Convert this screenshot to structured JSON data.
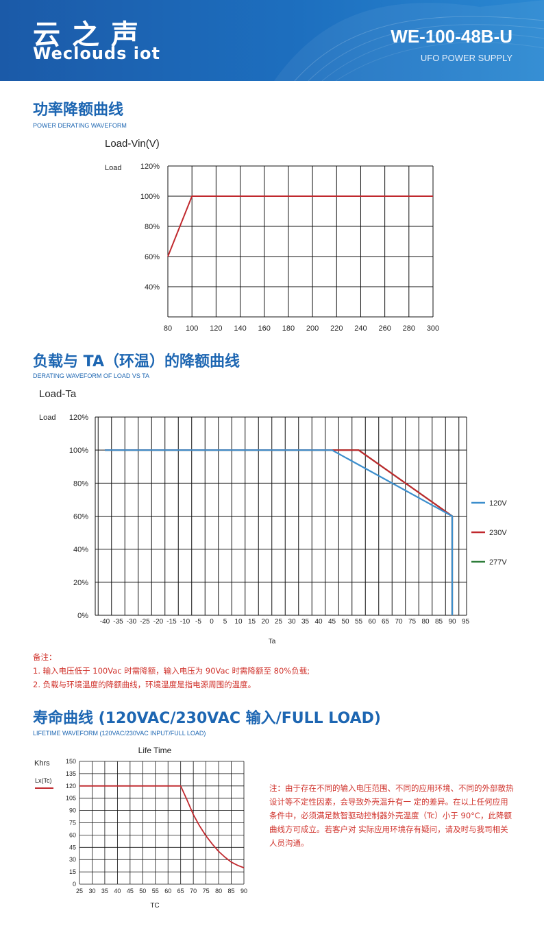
{
  "header": {
    "logo_cn": "云之声",
    "logo_en": "Weclouds iot",
    "model": "WE-100-48B-U",
    "subtitle": "UFO POWER SUPPLY"
  },
  "sections": {
    "s1_title": "功率降额曲线",
    "s1_sub": "POWER DERATING WAVEFORM",
    "s2_title": "负载与 TA（环温）的降额曲线",
    "s2_sub": "DERATING WAVEFORM OF LOAD VS TA",
    "s3_title": "寿命曲线 (120VAC/230VAC 输入/FULL LOAD)",
    "s3_sub": "LIFETIME WAVEFORM (120VAC/230VAC INPUT/FULL LOAD)"
  },
  "notes": {
    "heading": "备注：",
    "line1": "1. 输入电压低于 100Vac 时需降额，输入电压为 90Vac 时需降额至 80%负载;",
    "line2": "2. 负载与环境温度的降额曲线，环境温度是指电源周围的温度。"
  },
  "note2": "注：由于存在不同的输入电压范围、不同的应用环境、不同的外部散热设计等不定性因素，会导致外壳温升有一 定的差异。在以上任何应用条件中，必须满足数智驱动控制器外壳温度（Tc）小于 90°C，此降额曲线方可成立。若客户对 实际应用环境存有疑问，请及时与我司相关人员沟通。",
  "colors": {
    "blue": "#3c8ecc",
    "red": "#c0282d",
    "green": "#2e7d3a",
    "title_blue": "#1d66b2"
  },
  "chart_data": [
    {
      "type": "line",
      "title": "Load-Vin(V)",
      "ylabel": "Load",
      "xlabel": "",
      "x_ticks": [
        80,
        100,
        120,
        140,
        160,
        180,
        200,
        220,
        240,
        260,
        280,
        300
      ],
      "y_tick_labels": [
        "120%",
        "100%",
        "80%",
        "60%",
        "40%"
      ],
      "y_ticks": [
        120,
        100,
        80,
        60,
        40
      ],
      "xlim": [
        80,
        300
      ],
      "ylim": [
        20,
        120
      ],
      "grid": true,
      "series": [
        {
          "x": [
            80,
            100,
            300
          ],
          "y": [
            60,
            100,
            100
          ]
        }
      ]
    },
    {
      "type": "line",
      "title": "Load-Ta",
      "ylabel": "Load",
      "xlabel": "Ta",
      "x_ticks": [
        -40,
        -35,
        -30,
        -25,
        -20,
        -15,
        -10,
        -5,
        0,
        5,
        10,
        15,
        20,
        25,
        30,
        35,
        40,
        45,
        50,
        55,
        60,
        65,
        70,
        75,
        80,
        85,
        90,
        95
      ],
      "y_tick_labels": [
        "120%",
        "100%",
        "80%",
        "60%",
        "40%",
        "20%",
        "0%"
      ],
      "y_ticks": [
        120,
        100,
        80,
        60,
        40,
        20,
        0
      ],
      "xlim": [
        -42,
        97
      ],
      "ylim": [
        0,
        120
      ],
      "grid": true,
      "legend": "right",
      "series": [
        {
          "name": "277V",
          "x": [
            -40,
            55,
            90,
            90
          ],
          "y": [
            100,
            100,
            60,
            0
          ]
        },
        {
          "name": "230V",
          "x": [
            -40,
            55,
            90,
            90
          ],
          "y": [
            100,
            100,
            60,
            0
          ]
        },
        {
          "name": "120V",
          "x": [
            -40,
            45,
            90,
            90
          ],
          "y": [
            100,
            100,
            60,
            0
          ]
        }
      ]
    },
    {
      "type": "line",
      "title": "Life Time",
      "ylabel": "Khrs",
      "xlabel": "TC",
      "legend": "Lx(Tc)",
      "x_ticks": [
        25,
        30,
        35,
        40,
        45,
        50,
        55,
        60,
        65,
        70,
        75,
        80,
        85,
        90
      ],
      "y_ticks": [
        0,
        15,
        30,
        45,
        60,
        75,
        90,
        105,
        120,
        135,
        150
      ],
      "xlim": [
        25,
        90
      ],
      "ylim": [
        0,
        150
      ],
      "grid": true,
      "series": [
        {
          "name": "Lx(Tc)",
          "x": [
            25,
            65,
            67.5,
            70,
            72.5,
            75,
            77.5,
            80,
            82.5,
            85,
            87.5,
            90
          ],
          "y": [
            120,
            120,
            103,
            85,
            71,
            59,
            49,
            40,
            33,
            27,
            23,
            20
          ]
        }
      ]
    }
  ]
}
